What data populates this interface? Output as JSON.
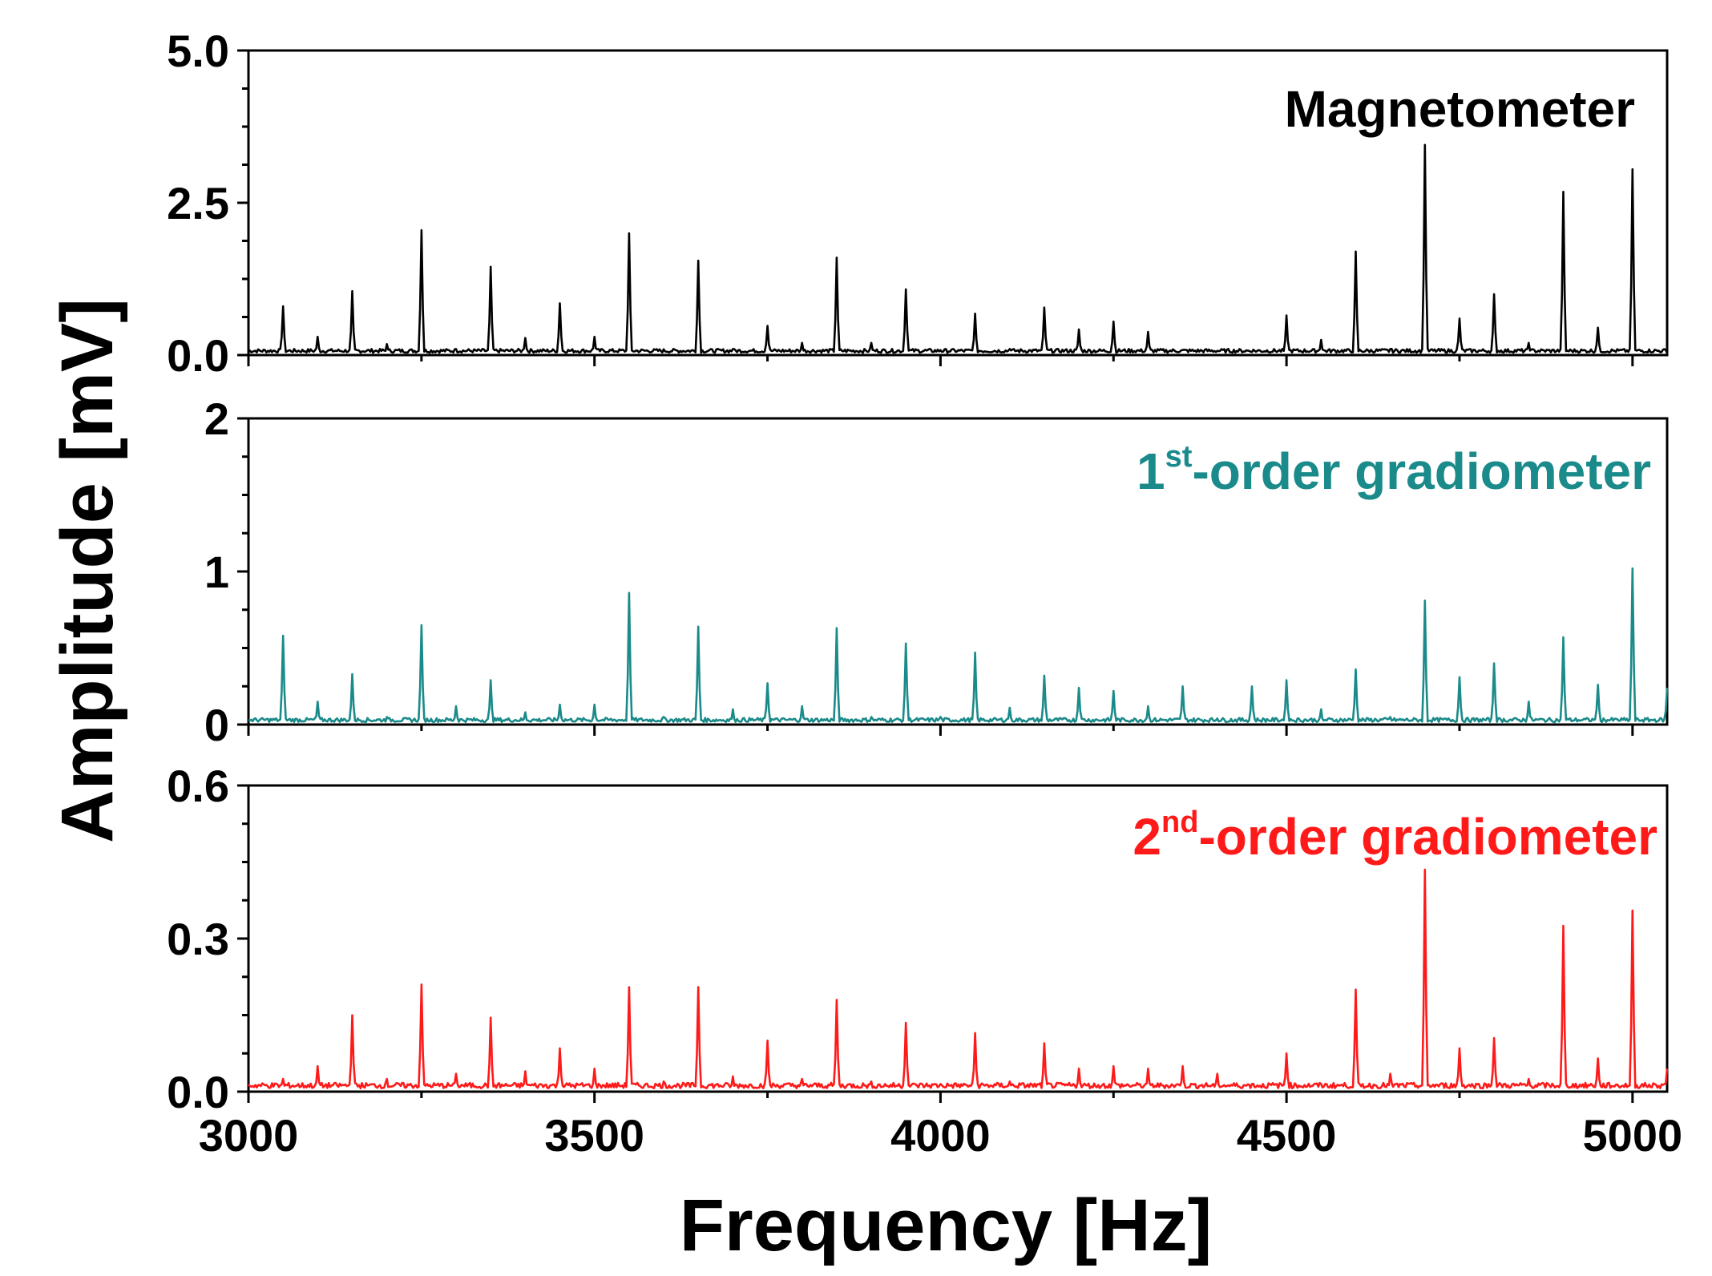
{
  "chart_data": {
    "type": "line",
    "xlabel": "Frequency [Hz]",
    "ylabel": "Amplitude [mV]",
    "xlim": [
      3000,
      5050
    ],
    "x_ticks": [
      "3000",
      "3500",
      "4000",
      "4500",
      "5000"
    ],
    "panels": [
      {
        "name": "Magnetometer",
        "label_main": "Magnetometer",
        "label_sup": "",
        "label_rest": "",
        "color": "#000000",
        "ylim": [
          0,
          5.0
        ],
        "y_ticks": [
          "0.0",
          "2.5",
          "5.0"
        ],
        "baseline": 0.07,
        "peaks": [
          [
            3050,
            0.8
          ],
          [
            3100,
            0.3
          ],
          [
            3150,
            1.05
          ],
          [
            3200,
            0.18
          ],
          [
            3250,
            2.05
          ],
          [
            3300,
            0.1
          ],
          [
            3350,
            1.45
          ],
          [
            3400,
            0.28
          ],
          [
            3450,
            0.85
          ],
          [
            3500,
            0.3
          ],
          [
            3550,
            2.0
          ],
          [
            3600,
            0.08
          ],
          [
            3650,
            1.55
          ],
          [
            3700,
            0.1
          ],
          [
            3750,
            0.48
          ],
          [
            3800,
            0.2
          ],
          [
            3850,
            1.6
          ],
          [
            3900,
            0.2
          ],
          [
            3950,
            1.08
          ],
          [
            4000,
            0.08
          ],
          [
            4050,
            0.68
          ],
          [
            4100,
            0.1
          ],
          [
            4150,
            0.78
          ],
          [
            4200,
            0.42
          ],
          [
            4250,
            0.55
          ],
          [
            4300,
            0.38
          ],
          [
            4350,
            0.05
          ],
          [
            4400,
            0.05
          ],
          [
            4450,
            0.05
          ],
          [
            4500,
            0.65
          ],
          [
            4550,
            0.25
          ],
          [
            4600,
            1.7
          ],
          [
            4650,
            0.1
          ],
          [
            4700,
            3.45
          ],
          [
            4750,
            0.6
          ],
          [
            4800,
            1.0
          ],
          [
            4850,
            0.2
          ],
          [
            4900,
            2.68
          ],
          [
            4950,
            0.45
          ],
          [
            5000,
            3.05
          ]
        ]
      },
      {
        "name": "1st-order gradiometer",
        "label_main": "1",
        "label_sup": "st",
        "label_rest": "-order gradiometer",
        "color": "#1a8a8a",
        "ylim": [
          0,
          2
        ],
        "y_ticks": [
          "0",
          "1",
          "2"
        ],
        "baseline": 0.03,
        "peaks": [
          [
            3050,
            0.58
          ],
          [
            3100,
            0.15
          ],
          [
            3150,
            0.33
          ],
          [
            3200,
            0.05
          ],
          [
            3250,
            0.65
          ],
          [
            3300,
            0.12
          ],
          [
            3350,
            0.29
          ],
          [
            3400,
            0.08
          ],
          [
            3450,
            0.13
          ],
          [
            3500,
            0.13
          ],
          [
            3550,
            0.86
          ],
          [
            3600,
            0.05
          ],
          [
            3650,
            0.64
          ],
          [
            3700,
            0.1
          ],
          [
            3750,
            0.27
          ],
          [
            3800,
            0.12
          ],
          [
            3850,
            0.63
          ],
          [
            3900,
            0.05
          ],
          [
            3950,
            0.53
          ],
          [
            4000,
            0.05
          ],
          [
            4050,
            0.47
          ],
          [
            4100,
            0.11
          ],
          [
            4150,
            0.32
          ],
          [
            4200,
            0.24
          ],
          [
            4250,
            0.22
          ],
          [
            4300,
            0.12
          ],
          [
            4350,
            0.25
          ],
          [
            4400,
            0.04
          ],
          [
            4450,
            0.25
          ],
          [
            4500,
            0.29
          ],
          [
            4550,
            0.1
          ],
          [
            4600,
            0.36
          ],
          [
            4650,
            0.05
          ],
          [
            4700,
            0.81
          ],
          [
            4750,
            0.31
          ],
          [
            4800,
            0.4
          ],
          [
            4850,
            0.15
          ],
          [
            4900,
            0.57
          ],
          [
            4950,
            0.26
          ],
          [
            5000,
            1.02
          ],
          [
            5050,
            0.24
          ]
        ]
      },
      {
        "name": "2nd-order gradiometer",
        "label_main": "2",
        "label_sup": "nd",
        "label_rest": "-order gradiometer",
        "color": "#ff1a1a",
        "ylim": [
          0,
          0.6
        ],
        "y_ticks": [
          "0.0",
          "0.3",
          "0.6"
        ],
        "baseline": 0.012,
        "peaks": [
          [
            3050,
            0.025
          ],
          [
            3100,
            0.05
          ],
          [
            3150,
            0.15
          ],
          [
            3200,
            0.025
          ],
          [
            3250,
            0.21
          ],
          [
            3300,
            0.035
          ],
          [
            3350,
            0.145
          ],
          [
            3400,
            0.04
          ],
          [
            3450,
            0.085
          ],
          [
            3500,
            0.045
          ],
          [
            3550,
            0.205
          ],
          [
            3600,
            0.02
          ],
          [
            3650,
            0.205
          ],
          [
            3700,
            0.03
          ],
          [
            3750,
            0.1
          ],
          [
            3800,
            0.025
          ],
          [
            3850,
            0.18
          ],
          [
            3900,
            0.02
          ],
          [
            3950,
            0.135
          ],
          [
            4000,
            0.015
          ],
          [
            4050,
            0.115
          ],
          [
            4100,
            0.02
          ],
          [
            4150,
            0.095
          ],
          [
            4200,
            0.045
          ],
          [
            4250,
            0.05
          ],
          [
            4300,
            0.045
          ],
          [
            4350,
            0.05
          ],
          [
            4400,
            0.035
          ],
          [
            4450,
            0.015
          ],
          [
            4500,
            0.075
          ],
          [
            4550,
            0.015
          ],
          [
            4600,
            0.2
          ],
          [
            4650,
            0.035
          ],
          [
            4700,
            0.435
          ],
          [
            4750,
            0.085
          ],
          [
            4800,
            0.105
          ],
          [
            4850,
            0.025
          ],
          [
            4900,
            0.325
          ],
          [
            4950,
            0.065
          ],
          [
            5000,
            0.355
          ],
          [
            5050,
            0.045
          ]
        ]
      }
    ]
  }
}
